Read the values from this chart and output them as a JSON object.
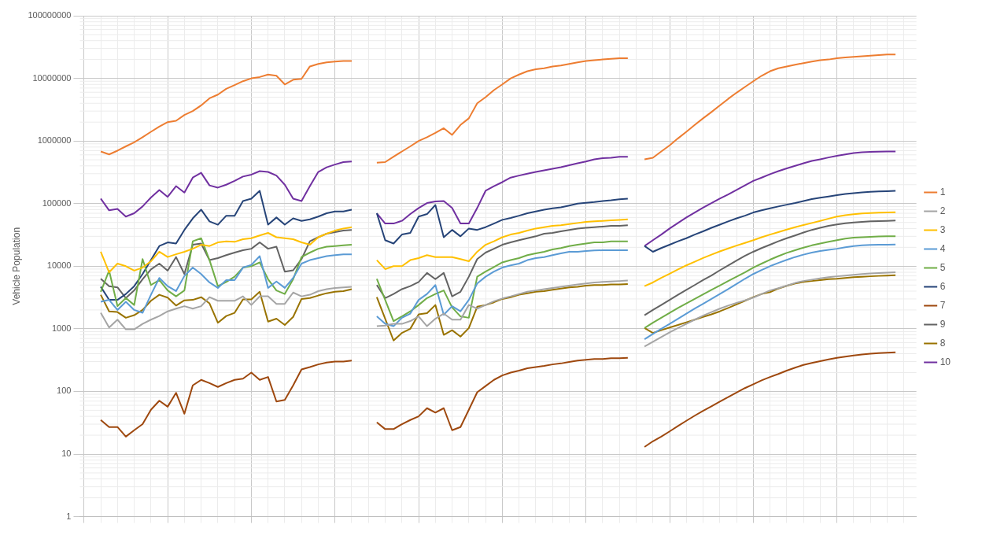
{
  "chart_data": {
    "type": "line",
    "ylabel": "Vehicle Population",
    "log": true,
    "grid": true,
    "legend": "right",
    "ylim": [
      1,
      100000000
    ],
    "yticks": [
      1,
      10,
      100,
      1000,
      10000,
      100000,
      1000000,
      10000000,
      100000000
    ],
    "categories": [
      null,
      null,
      null,
      null,
      null,
      null,
      null,
      null,
      null,
      null,
      null,
      null,
      null,
      null,
      null,
      null,
      null,
      null,
      null,
      null,
      null,
      null,
      null,
      null,
      null,
      null,
      null,
      null,
      null,
      null,
      null,
      null,
      null,
      null,
      null,
      null,
      null,
      null,
      null,
      null,
      null,
      null,
      null,
      null,
      null,
      null,
      null,
      null,
      null,
      null,
      null,
      null,
      null,
      null,
      null,
      null,
      null,
      null,
      null,
      null,
      null,
      null,
      null,
      null,
      null,
      null,
      null,
      null,
      null,
      null,
      null,
      null,
      null,
      null,
      null,
      null,
      null,
      null,
      null,
      null,
      null,
      null,
      null,
      null,
      null,
      null,
      null,
      null,
      null,
      null,
      null,
      null,
      null,
      null,
      null,
      null,
      null,
      null,
      null,
      null
    ],
    "series": [
      {
        "name": "1",
        "color": "#ed7d31",
        "values": [
          null,
          null,
          680000,
          610000,
          700000,
          820000,
          950000,
          1150000,
          1400000,
          1700000,
          2000000,
          2100000,
          2600000,
          3000000,
          3700000,
          4800000,
          5500000,
          6800000,
          7800000,
          9000000,
          10000000,
          10500000,
          11500000,
          11000000,
          8000000,
          9500000,
          9800000,
          15500000,
          17000000,
          18000000,
          18500000,
          19000000,
          19000000,
          null,
          null,
          450000,
          460000,
          560000,
          680000,
          820000,
          1000000,
          1150000,
          1350000,
          1600000,
          1250000,
          1800000,
          2300000,
          4000000,
          5000000,
          6500000,
          8000000,
          10000000,
          11500000,
          13000000,
          14000000,
          14500000,
          15500000,
          16000000,
          17000000,
          18000000,
          19000000,
          19500000,
          20000000,
          20500000,
          21000000,
          21000000,
          null,
          510000,
          540000,
          680000,
          850000,
          1100000,
          1400000,
          1800000,
          2300000,
          2900000,
          3700000,
          4700000,
          5900000,
          7300000,
          9000000,
          11000000,
          13000000,
          14500000,
          15500000,
          16500000,
          17500000,
          18500000,
          19500000,
          20000000,
          21000000,
          21500000,
          22000000,
          22500000,
          23000000,
          23500000,
          24000000,
          24000000,
          null,
          null
        ]
      },
      {
        "name": "2",
        "color": "#a5a5a5",
        "values": [
          null,
          null,
          1800,
          1050,
          1400,
          980,
          980,
          1200,
          1400,
          1600,
          1900,
          2100,
          2300,
          2100,
          2300,
          3200,
          2800,
          2800,
          2800,
          3300,
          2400,
          3300,
          3300,
          2500,
          2500,
          3800,
          3300,
          3500,
          4000,
          4300,
          4500,
          4600,
          4700,
          null,
          null,
          1100,
          1130,
          1200,
          1200,
          1330,
          1580,
          1100,
          1450,
          1750,
          1400,
          1400,
          2400,
          2100,
          2400,
          2750,
          3050,
          3300,
          3600,
          3900,
          4100,
          4300,
          4500,
          4700,
          4900,
          5100,
          5300,
          5500,
          5600,
          5700,
          5800,
          5900,
          null,
          520,
          620,
          740,
          880,
          1030,
          1200,
          1400,
          1620,
          1850,
          2100,
          2350,
          2600,
          2850,
          3150,
          3600,
          4100,
          4450,
          4900,
          5400,
          5800,
          6100,
          6400,
          6700,
          6900,
          7100,
          7300,
          7500,
          7650,
          7800,
          7900,
          8000,
          null,
          null
        ]
      },
      {
        "name": "3",
        "color": "#ffc000",
        "values": [
          null,
          null,
          17000,
          8000,
          11000,
          10000,
          8500,
          9500,
          12000,
          17000,
          14000,
          15500,
          17000,
          19000,
          22000,
          21000,
          24000,
          25000,
          24500,
          27000,
          28000,
          31000,
          34000,
          29000,
          28000,
          27000,
          24000,
          22000,
          29000,
          33000,
          37000,
          40000,
          42000,
          null,
          null,
          12500,
          9000,
          10000,
          10000,
          12500,
          13500,
          15000,
          14000,
          14000,
          14000,
          13000,
          12000,
          17000,
          22000,
          25000,
          29000,
          32000,
          34000,
          37000,
          40000,
          42000,
          44000,
          45000,
          47000,
          49000,
          51000,
          52000,
          53000,
          54000,
          55000,
          56000,
          null,
          4800,
          5500,
          6500,
          7600,
          8900,
          10300,
          11800,
          13500,
          15300,
          17200,
          19200,
          21300,
          23500,
          26000,
          29000,
          32000,
          35000,
          38500,
          42000,
          45500,
          49000,
          53000,
          57500,
          62000,
          65000,
          67500,
          69500,
          70500,
          71500,
          72000,
          72500,
          null,
          null
        ]
      },
      {
        "name": "4",
        "color": "#5b9bd5",
        "values": [
          null,
          null,
          2700,
          2900,
          2000,
          2700,
          2000,
          1800,
          3500,
          6500,
          4800,
          4000,
          7000,
          9500,
          7500,
          5500,
          4500,
          6000,
          6000,
          9500,
          10500,
          14500,
          4500,
          5700,
          4500,
          6500,
          11000,
          12500,
          13500,
          14500,
          15000,
          15500,
          15500,
          null,
          null,
          1580,
          1200,
          1100,
          1500,
          1750,
          2900,
          3600,
          5000,
          1680,
          2300,
          1900,
          2900,
          5300,
          6800,
          8200,
          9500,
          10300,
          11000,
          12500,
          13500,
          14000,
          15000,
          16000,
          17000,
          17000,
          17500,
          17800,
          18000,
          18000,
          18000,
          18000,
          null,
          680,
          830,
          1000,
          1200,
          1450,
          1750,
          2100,
          2500,
          3000,
          3600,
          4300,
          5200,
          6300,
          7500,
          8700,
          10000,
          11300,
          12600,
          14000,
          15300,
          16500,
          17500,
          18300,
          19000,
          20000,
          21000,
          21500,
          21800,
          22000,
          22000,
          22200,
          null,
          null
        ]
      },
      {
        "name": "5",
        "color": "#70ad47",
        "values": [
          null,
          null,
          3900,
          8500,
          2300,
          3100,
          2400,
          13000,
          5000,
          6000,
          4100,
          3300,
          4100,
          25000,
          28000,
          12500,
          4800,
          5600,
          6800,
          9500,
          10000,
          11500,
          6200,
          4100,
          3600,
          6200,
          14000,
          16500,
          19000,
          20500,
          21000,
          21500,
          22000,
          null,
          null,
          6300,
          2900,
          1330,
          1580,
          1900,
          2400,
          3100,
          3600,
          4100,
          2200,
          1580,
          1500,
          6800,
          8200,
          9700,
          11500,
          12500,
          13500,
          15000,
          16000,
          17000,
          18500,
          19500,
          21000,
          22000,
          23000,
          24000,
          24000,
          25000,
          25000,
          25000,
          null,
          1030,
          1250,
          1500,
          1800,
          2150,
          2550,
          3000,
          3550,
          4200,
          4900,
          5800,
          6800,
          8000,
          9500,
          11000,
          12700,
          14500,
          16300,
          18000,
          19800,
          21500,
          23000,
          24500,
          26000,
          27500,
          28500,
          29000,
          29500,
          29800,
          30000,
          30000,
          null,
          null
        ]
      },
      {
        "name": "6",
        "color": "#264478",
        "values": [
          null,
          null,
          4700,
          2900,
          2900,
          3600,
          4800,
          7500,
          12500,
          21000,
          24000,
          23000,
          38000,
          58000,
          80000,
          52000,
          46000,
          64000,
          64000,
          110000,
          120000,
          160000,
          46000,
          60000,
          46000,
          58000,
          53000,
          56000,
          62000,
          70000,
          75000,
          75000,
          80000,
          null,
          null,
          70000,
          26000,
          23000,
          32000,
          34000,
          62000,
          68000,
          95000,
          29000,
          38000,
          30000,
          40000,
          38000,
          42000,
          48000,
          55000,
          59000,
          64000,
          70000,
          75000,
          80000,
          84000,
          87000,
          93000,
          100000,
          103000,
          106000,
          110000,
          113000,
          117000,
          120000,
          null,
          21000,
          17000,
          19500,
          22000,
          25000,
          28000,
          32000,
          36000,
          41000,
          46000,
          52000,
          58000,
          64000,
          72000,
          78000,
          84000,
          90000,
          96000,
          102000,
          110000,
          118000,
          124000,
          130000,
          136000,
          142000,
          147000,
          151000,
          154000,
          156000,
          158000,
          160000,
          null,
          null
        ]
      },
      {
        "name": "7",
        "color": "#9e480e",
        "values": [
          null,
          null,
          35,
          27,
          27,
          19,
          24,
          30,
          51,
          71,
          57,
          95,
          44,
          125,
          153,
          136,
          118,
          136,
          153,
          160,
          200,
          153,
          170,
          69,
          73,
          125,
          225,
          245,
          270,
          290,
          300,
          300,
          310,
          null,
          null,
          32,
          25,
          25,
          30,
          35,
          40,
          54,
          46,
          54,
          24,
          27,
          51,
          97,
          122,
          153,
          180,
          200,
          215,
          235,
          245,
          255,
          270,
          280,
          295,
          310,
          320,
          330,
          330,
          340,
          340,
          345,
          null,
          13,
          16,
          19,
          23,
          28,
          34,
          41,
          49,
          58,
          69,
          81,
          96,
          113,
          130,
          150,
          170,
          190,
          215,
          240,
          265,
          285,
          305,
          325,
          345,
          360,
          375,
          390,
          400,
          410,
          415,
          420,
          null,
          null
        ]
      },
      {
        "name": "9",
        "color": "#636363",
        "values": [
          null,
          null,
          6300,
          4800,
          4600,
          3100,
          4100,
          6200,
          8900,
          11000,
          8500,
          14000,
          7500,
          22000,
          23000,
          12500,
          13500,
          15000,
          16500,
          18000,
          19000,
          24000,
          19000,
          20500,
          8200,
          8600,
          13000,
          25000,
          29000,
          33000,
          35000,
          37000,
          38000,
          null,
          null,
          5000,
          3100,
          3600,
          4300,
          4800,
          5600,
          7800,
          6200,
          7800,
          3300,
          3900,
          6800,
          13000,
          16500,
          19000,
          22000,
          24000,
          26000,
          28000,
          30000,
          33000,
          34000,
          36000,
          38000,
          40000,
          41000,
          42000,
          43000,
          44000,
          44000,
          45000,
          null,
          1650,
          2000,
          2400,
          2900,
          3500,
          4200,
          5000,
          6000,
          7100,
          8600,
          10300,
          12300,
          14600,
          17000,
          19500,
          22000,
          25000,
          28000,
          31000,
          34500,
          38000,
          41000,
          44000,
          46500,
          48500,
          50000,
          51000,
          52000,
          52500,
          53000,
          53500,
          null,
          null
        ]
      },
      {
        "name": "8",
        "color": "#997300",
        "values": [
          null,
          null,
          3500,
          1900,
          1850,
          1500,
          1650,
          2000,
          2800,
          3500,
          3150,
          2350,
          2850,
          2900,
          3200,
          2550,
          1250,
          1600,
          1800,
          2950,
          2950,
          3900,
          1300,
          1450,
          1150,
          1550,
          3000,
          3100,
          3400,
          3700,
          3900,
          4000,
          4300,
          null,
          null,
          3200,
          1450,
          650,
          860,
          1000,
          1700,
          1780,
          2400,
          800,
          950,
          750,
          1030,
          2250,
          2400,
          2650,
          3000,
          3200,
          3500,
          3700,
          3900,
          4000,
          4200,
          4400,
          4600,
          4700,
          4900,
          5000,
          5000,
          5100,
          5100,
          5200,
          null,
          1030,
          860,
          950,
          1050,
          1150,
          1270,
          1400,
          1550,
          1700,
          1900,
          2150,
          2450,
          2800,
          3200,
          3600,
          3850,
          4400,
          4850,
          5300,
          5600,
          5800,
          6000,
          6200,
          6300,
          6500,
          6700,
          6800,
          6900,
          7000,
          7100,
          7200,
          null,
          null
        ]
      },
      {
        "name": "10",
        "color": "#7030a0",
        "values": [
          null,
          null,
          120000,
          78000,
          82000,
          62000,
          70000,
          90000,
          125000,
          165000,
          128000,
          190000,
          150000,
          260000,
          310000,
          195000,
          180000,
          200000,
          230000,
          270000,
          290000,
          330000,
          320000,
          280000,
          200000,
          120000,
          110000,
          190000,
          320000,
          380000,
          420000,
          460000,
          470000,
          null,
          null,
          70000,
          48000,
          48000,
          53000,
          68000,
          85000,
          102000,
          108000,
          110000,
          85000,
          48000,
          48000,
          85000,
          160000,
          190000,
          220000,
          260000,
          280000,
          300000,
          320000,
          340000,
          360000,
          380000,
          410000,
          440000,
          470000,
          510000,
          530000,
          540000,
          560000,
          560000,
          null,
          21000,
          26000,
          32000,
          40000,
          49000,
          60000,
          72000,
          86000,
          102000,
          120000,
          140000,
          165000,
          195000,
          230000,
          260000,
          295000,
          330000,
          365000,
          400000,
          440000,
          480000,
          510000,
          545000,
          580000,
          610000,
          640000,
          660000,
          670000,
          675000,
          680000,
          680000,
          null,
          null
        ]
      }
    ]
  }
}
